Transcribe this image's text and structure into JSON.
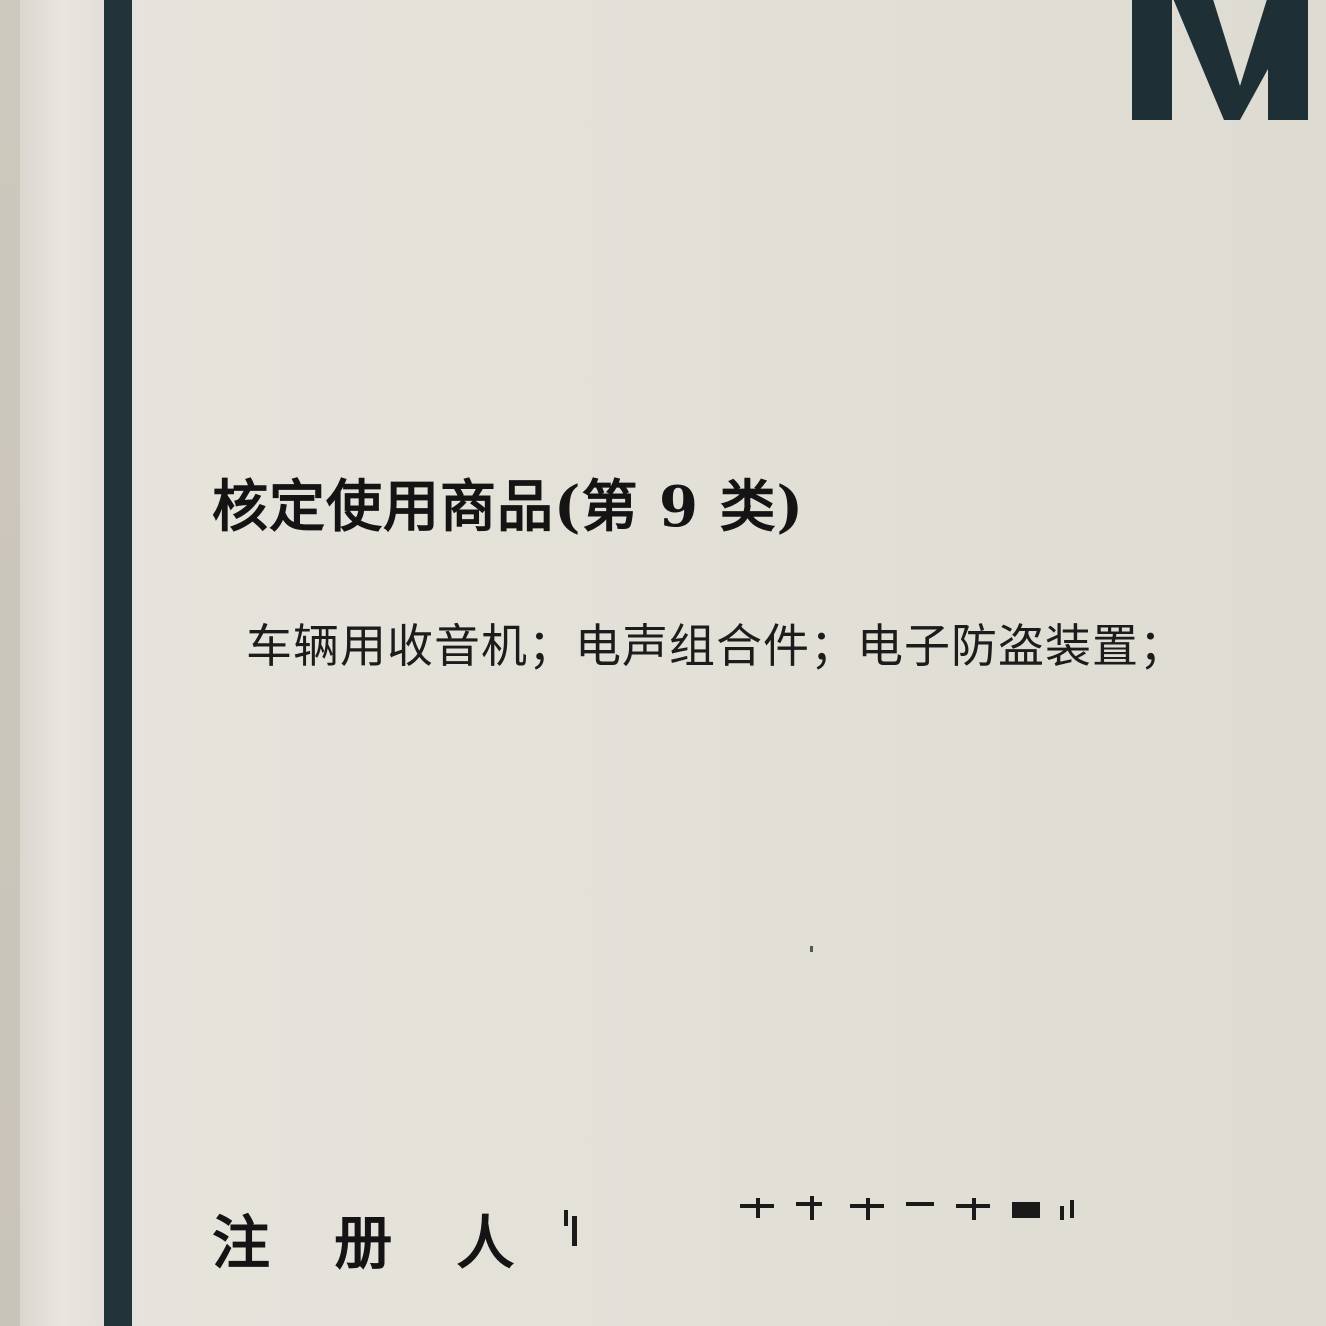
{
  "document": {
    "logo_text": "M",
    "section_title": "核定使用商品(第 9 类)",
    "goods_list": "车辆用收音机；电声组合件；电子防盗装置；",
    "registrant_label": "注 册 人",
    "registrant_value": ""
  },
  "colors": {
    "paper": "#e3e1d8",
    "spine_stripe": "#22343a",
    "text": "#141414"
  }
}
